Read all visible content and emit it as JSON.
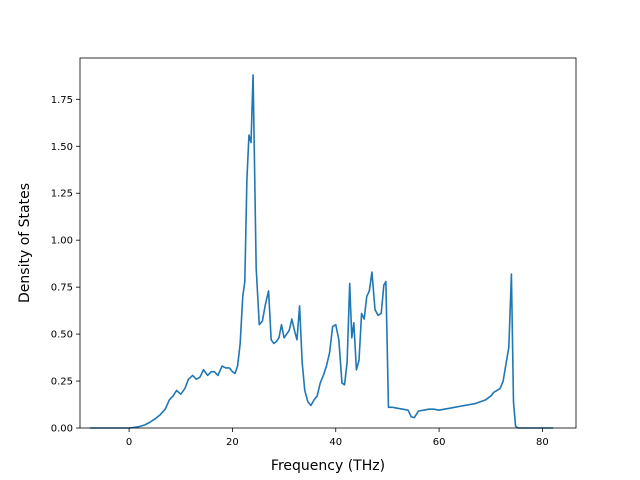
{
  "chart_data": {
    "type": "line",
    "title": "",
    "xlabel": "Frequency (THz)",
    "ylabel": "Density of States",
    "xlim": [
      -9.5,
      86.5
    ],
    "ylim": [
      0,
      1.97
    ],
    "x_ticks": [
      0,
      20,
      40,
      60,
      80
    ],
    "x_tick_labels": [
      "0",
      "20",
      "40",
      "60",
      "80"
    ],
    "y_ticks": [
      0,
      0.25,
      0.5,
      0.75,
      1.0,
      1.25,
      1.5,
      1.75
    ],
    "y_tick_labels": [
      "0.00",
      "0.25",
      "0.50",
      "0.75",
      "1.00",
      "1.25",
      "1.50",
      "1.75"
    ],
    "grid": false,
    "line_color": "#1f77b4",
    "series": [
      {
        "x": [
          -7.5,
          0.0,
          1.0,
          2.0,
          3.0,
          4.0,
          5.0,
          6.0,
          7.0,
          7.8,
          8.5,
          9.2,
          10.0,
          10.8,
          11.5,
          12.3,
          13.0,
          13.7,
          14.4,
          15.2,
          15.9,
          16.5,
          17.2,
          18.0,
          18.7,
          19.4,
          20.0,
          20.5,
          21.0,
          21.5,
          22.0,
          22.4,
          22.8,
          23.2,
          23.6,
          24.0,
          24.6,
          25.2,
          25.8,
          26.4,
          27.0,
          27.5,
          28.0,
          28.5,
          29.0,
          29.5,
          30.0,
          30.5,
          31.0,
          31.5,
          32.0,
          32.5,
          33.0,
          33.5,
          34.0,
          34.6,
          35.2,
          35.8,
          36.4,
          37.0,
          37.6,
          38.2,
          38.8,
          39.4,
          40.0,
          40.6,
          41.2,
          41.7,
          42.2,
          42.7,
          43.1,
          43.5,
          44.0,
          44.5,
          45.0,
          45.5,
          46.0,
          46.5,
          47.0,
          47.6,
          48.2,
          48.8,
          49.3,
          49.7,
          50.2,
          51.0,
          52.0,
          53.0,
          54.0,
          54.6,
          55.2,
          56.0,
          57.0,
          58.0,
          59.0,
          60.0,
          61.0,
          62.0,
          63.0,
          64.0,
          65.0,
          66.0,
          67.0,
          68.0,
          69.0,
          70.0,
          70.6,
          71.2,
          71.8,
          72.4,
          73.0,
          73.5,
          74.0,
          74.4,
          74.8,
          75.3,
          82.0
        ],
        "y": [
          0.0,
          0.0,
          0.003,
          0.008,
          0.016,
          0.03,
          0.048,
          0.07,
          0.1,
          0.15,
          0.17,
          0.2,
          0.18,
          0.21,
          0.26,
          0.28,
          0.26,
          0.27,
          0.31,
          0.28,
          0.3,
          0.3,
          0.28,
          0.33,
          0.32,
          0.32,
          0.3,
          0.29,
          0.33,
          0.45,
          0.7,
          0.78,
          1.32,
          1.56,
          1.52,
          1.88,
          0.85,
          0.55,
          0.57,
          0.66,
          0.73,
          0.47,
          0.45,
          0.46,
          0.48,
          0.55,
          0.48,
          0.5,
          0.52,
          0.58,
          0.52,
          0.47,
          0.65,
          0.35,
          0.2,
          0.14,
          0.12,
          0.15,
          0.17,
          0.24,
          0.28,
          0.33,
          0.4,
          0.54,
          0.55,
          0.47,
          0.24,
          0.23,
          0.35,
          0.77,
          0.48,
          0.56,
          0.31,
          0.36,
          0.61,
          0.58,
          0.7,
          0.73,
          0.83,
          0.63,
          0.6,
          0.61,
          0.76,
          0.78,
          0.11,
          0.11,
          0.105,
          0.1,
          0.095,
          0.06,
          0.055,
          0.09,
          0.095,
          0.1,
          0.1,
          0.095,
          0.1,
          0.105,
          0.11,
          0.115,
          0.12,
          0.125,
          0.13,
          0.14,
          0.15,
          0.17,
          0.19,
          0.2,
          0.21,
          0.25,
          0.35,
          0.43,
          0.82,
          0.14,
          0.01,
          0.0,
          0.0
        ]
      }
    ]
  }
}
